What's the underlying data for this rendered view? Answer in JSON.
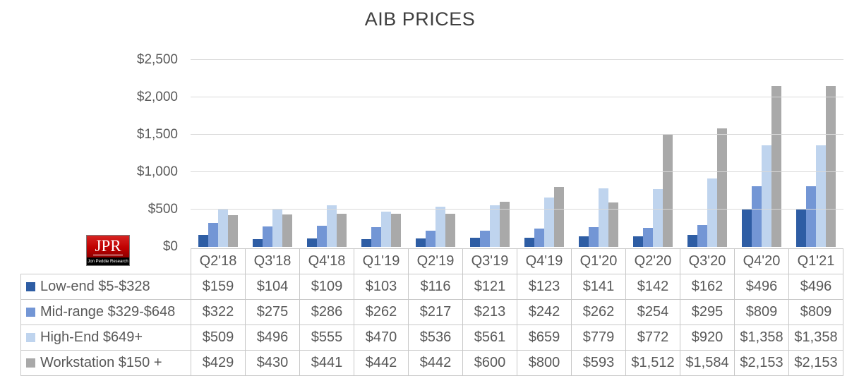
{
  "title": "AIB PRICES",
  "logo": {
    "text": "JPR",
    "subtext": "Jon Peddie Research",
    "bg_color": "#C00000",
    "strip_color": "#000000"
  },
  "colors": {
    "grid": "#D9D9D9",
    "table_border": "#C8C8C8",
    "axis_text": "#595959",
    "title_text": "#404040"
  },
  "chart_data": {
    "type": "bar",
    "title": "AIB PRICES",
    "categories": [
      "Q2'18",
      "Q3'18",
      "Q4'18",
      "Q1'19",
      "Q2'19",
      "Q3'19",
      "Q4'19",
      "Q1'20",
      "Q2'20",
      "Q3'20",
      "Q4'20",
      "Q1'21"
    ],
    "series": [
      {
        "name": "Low-end $5-$328",
        "color": "#2E5DA4",
        "values": [
          159,
          104,
          109,
          103,
          116,
          121,
          123,
          141,
          142,
          162,
          496,
          496
        ]
      },
      {
        "name": "Mid-range $329-$648",
        "color": "#7396D5",
        "values": [
          322,
          275,
          286,
          262,
          217,
          213,
          242,
          262,
          254,
          295,
          809,
          809
        ]
      },
      {
        "name": "High-End $649+",
        "color": "#BFD4EE",
        "values": [
          509,
          496,
          555,
          470,
          536,
          561,
          659,
          779,
          772,
          920,
          1358,
          1358
        ]
      },
      {
        "name": "Workstation $150 +",
        "color": "#A9A9A9",
        "values": [
          429,
          430,
          441,
          442,
          442,
          600,
          800,
          593,
          1512,
          1584,
          2153,
          2153
        ]
      }
    ],
    "ylim": [
      0,
      2500
    ],
    "yticks": [
      0,
      500,
      1000,
      1500,
      2000,
      2500
    ],
    "ytick_labels": [
      "$0",
      "$500",
      "$1,000",
      "$1,500",
      "$2,000",
      "$2,500"
    ],
    "grid": true,
    "legend_position": "table-left-column",
    "value_prefix": "$"
  }
}
